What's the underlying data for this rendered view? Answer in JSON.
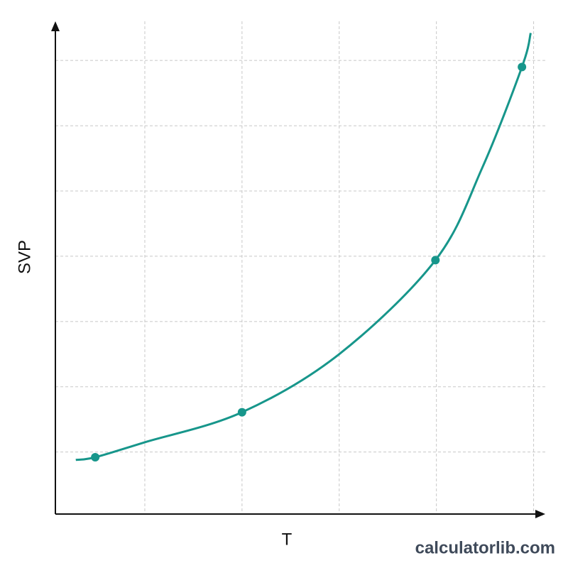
{
  "chart_data": {
    "type": "line",
    "x_label": "T",
    "y_label": "SVP",
    "xlim": [
      0.08,
      5.12
    ],
    "ylim": [
      0.05,
      7.6
    ],
    "xticks": [
      1,
      2,
      3,
      4,
      5
    ],
    "yticks": [
      1,
      2,
      3,
      4,
      5,
      6,
      7
    ],
    "grid": true,
    "series": [
      {
        "color": "#17968b",
        "markers": false,
        "x": [
          0.29,
          0.49,
          1,
          2,
          3,
          3.99,
          4.47,
          4.88,
          4.97
        ],
        "values": [
          0.88,
          0.92,
          1.15,
          1.61,
          2.5,
          3.94,
          5.35,
          6.9,
          7.42
        ]
      },
      {
        "color": "#17968b",
        "markers": true,
        "x": [
          0.49,
          2,
          3.99,
          4.88
        ],
        "values": [
          0.92,
          1.61,
          3.94,
          6.9
        ]
      }
    ]
  },
  "watermark": "calculatorlib.com"
}
